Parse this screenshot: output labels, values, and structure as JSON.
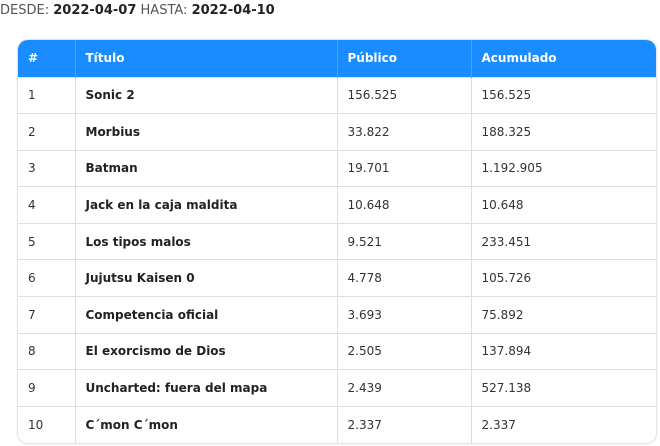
{
  "date_range": {
    "from_label": "DESDE:",
    "from_value": "2022-04-07",
    "to_label": "HASTA:",
    "to_value": "2022-04-10"
  },
  "table": {
    "headers": {
      "num": "#",
      "title": "Título",
      "public": "Público",
      "accumulated": "Acumulado"
    },
    "rows": [
      {
        "num": "1",
        "title": "Sonic 2",
        "public": "156.525",
        "accumulated": "156.525"
      },
      {
        "num": "2",
        "title": "Morbius",
        "public": "33.822",
        "accumulated": "188.325"
      },
      {
        "num": "3",
        "title": "Batman",
        "public": "19.701",
        "accumulated": "1.192.905"
      },
      {
        "num": "4",
        "title": "Jack en la caja maldita",
        "public": "10.648",
        "accumulated": "10.648"
      },
      {
        "num": "5",
        "title": "Los tipos malos",
        "public": "9.521",
        "accumulated": "233.451"
      },
      {
        "num": "6",
        "title": "Jujutsu Kaisen 0",
        "public": "4.778",
        "accumulated": "105.726"
      },
      {
        "num": "7",
        "title": "Competencia oficial",
        "public": "3.693",
        "accumulated": "75.892"
      },
      {
        "num": "8",
        "title": "El exorcismo de Dios",
        "public": "2.505",
        "accumulated": "137.894"
      },
      {
        "num": "9",
        "title": "Uncharted: fuera del mapa",
        "public": "2.439",
        "accumulated": "527.138"
      },
      {
        "num": "10",
        "title": "C´mon C´mon",
        "public": "2.337",
        "accumulated": "2.337"
      }
    ]
  },
  "colors": {
    "header_bg": "#1a8cff",
    "header_text": "#ffffff"
  }
}
